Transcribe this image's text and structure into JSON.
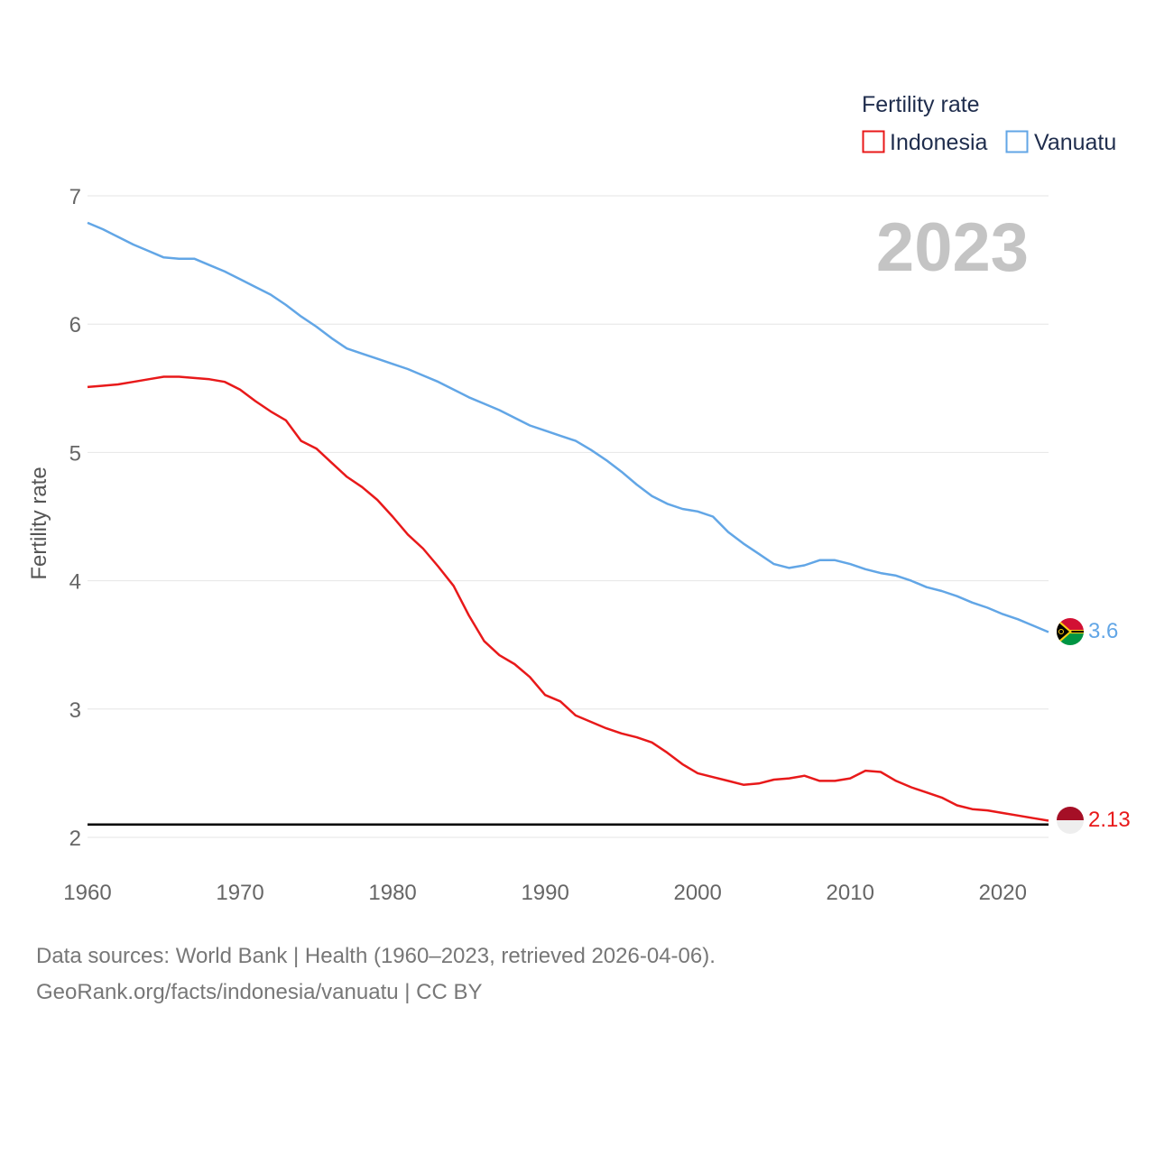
{
  "colors": {
    "indonesia": "#e8191a",
    "vanuatu": "#62a6e6",
    "reference": "#000000",
    "grid": "#e6e6e6"
  },
  "icons": {
    "indonesia_flag": "indonesia-flag-icon",
    "vanuatu_flag": "vanuatu-flag-icon"
  },
  "chart_data": {
    "type": "line",
    "title": "",
    "xlabel": "",
    "ylabel": "Fertility rate",
    "xlim": [
      1960,
      2023
    ],
    "ylim": [
      2,
      7
    ],
    "grid": true,
    "x_ticks": [
      1960,
      1970,
      1980,
      1990,
      2000,
      2010,
      2020
    ],
    "y_ticks": [
      2,
      3,
      4,
      5,
      6,
      7
    ],
    "legend": {
      "title": "Fertility rate",
      "position": "top-right"
    },
    "current_year": "2023",
    "reference_line": 2.1,
    "x": [
      1960,
      1961,
      1962,
      1963,
      1964,
      1965,
      1966,
      1967,
      1968,
      1969,
      1970,
      1971,
      1972,
      1973,
      1974,
      1975,
      1976,
      1977,
      1978,
      1979,
      1980,
      1981,
      1982,
      1983,
      1984,
      1985,
      1986,
      1987,
      1988,
      1989,
      1990,
      1991,
      1992,
      1993,
      1994,
      1995,
      1996,
      1997,
      1998,
      1999,
      2000,
      2001,
      2002,
      2003,
      2004,
      2005,
      2006,
      2007,
      2008,
      2009,
      2010,
      2011,
      2012,
      2013,
      2014,
      2015,
      2016,
      2017,
      2018,
      2019,
      2020,
      2021,
      2022,
      2023
    ],
    "series": [
      {
        "name": "Indonesia",
        "end_label": "2.13",
        "values": [
          5.51,
          5.52,
          5.53,
          5.55,
          5.57,
          5.59,
          5.59,
          5.58,
          5.57,
          5.55,
          5.49,
          5.4,
          5.32,
          5.25,
          5.09,
          5.03,
          4.92,
          4.81,
          4.73,
          4.63,
          4.5,
          4.36,
          4.25,
          4.11,
          3.96,
          3.73,
          3.53,
          3.42,
          3.35,
          3.25,
          3.11,
          3.06,
          2.95,
          2.9,
          2.85,
          2.81,
          2.78,
          2.74,
          2.66,
          2.57,
          2.5,
          2.47,
          2.44,
          2.41,
          2.42,
          2.45,
          2.46,
          2.48,
          2.44,
          2.44,
          2.46,
          2.52,
          2.51,
          2.44,
          2.39,
          2.35,
          2.31,
          2.25,
          2.22,
          2.21,
          2.19,
          2.17,
          2.15,
          2.13
        ]
      },
      {
        "name": "Vanuatu",
        "end_label": "3.6",
        "values": [
          6.79,
          6.74,
          6.68,
          6.62,
          6.57,
          6.52,
          6.51,
          6.51,
          6.46,
          6.41,
          6.35,
          6.29,
          6.23,
          6.15,
          6.06,
          5.98,
          5.89,
          5.81,
          5.77,
          5.73,
          5.69,
          5.65,
          5.6,
          5.55,
          5.49,
          5.43,
          5.38,
          5.33,
          5.27,
          5.21,
          5.17,
          5.13,
          5.09,
          5.02,
          4.94,
          4.85,
          4.75,
          4.66,
          4.6,
          4.56,
          4.54,
          4.5,
          4.38,
          4.29,
          4.21,
          4.13,
          4.1,
          4.12,
          4.16,
          4.16,
          4.13,
          4.09,
          4.06,
          4.04,
          4.0,
          3.95,
          3.92,
          3.88,
          3.83,
          3.79,
          3.74,
          3.7,
          3.65,
          3.6
        ]
      }
    ]
  },
  "footer": {
    "line1": "Data sources: World Bank | Health (1960–2023, retrieved 2026-04-06).",
    "line2": "GeoRank.org/facts/indonesia/vanuatu | CC BY"
  }
}
